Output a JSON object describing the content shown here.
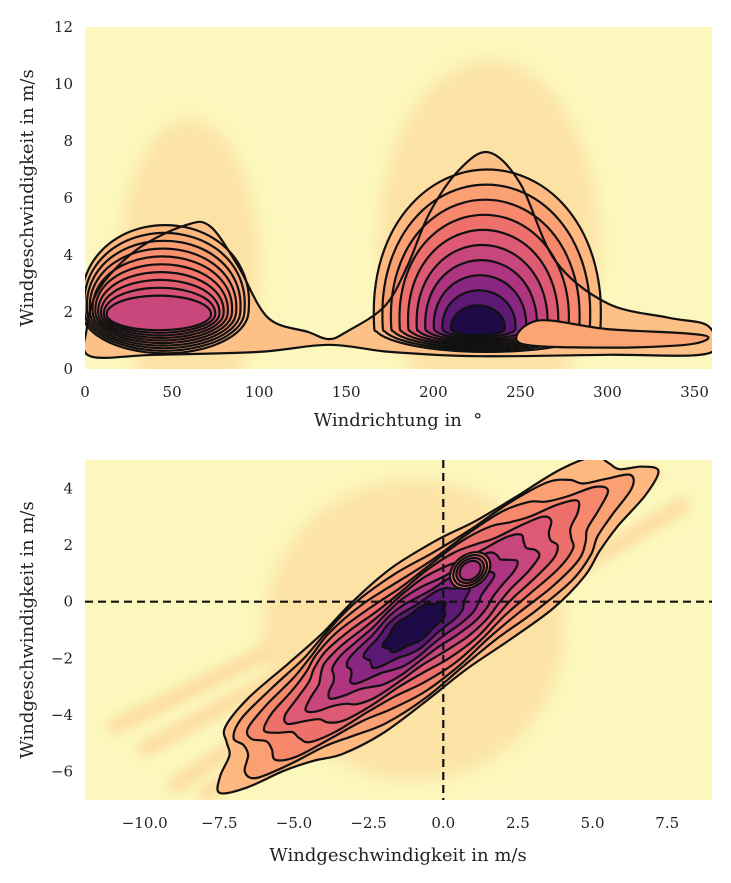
{
  "chart_data": [
    {
      "type": "kde-contour",
      "xlabel": "Windrichtung in  °",
      "ylabel": "Windgeschwindigkeit in m/s",
      "xlim": [
        0,
        360
      ],
      "ylim": [
        0,
        12
      ],
      "xticks": [
        0,
        50,
        100,
        150,
        200,
        250,
        300,
        350
      ],
      "yticks": [
        0,
        2,
        4,
        6,
        8,
        10,
        12
      ],
      "xtick_labels": [
        "0",
        "50",
        "100",
        "150",
        "200",
        "250",
        "300",
        "350"
      ],
      "ytick_labels": [
        "0",
        "2",
        "4",
        "6",
        "8",
        "10",
        "12"
      ],
      "grid": false,
      "colormap": "magma",
      "background_color": "#fcf8bd",
      "density_peaks": [
        {
          "x": 42,
          "y": 1.9,
          "relative_density": 0.55
        },
        {
          "x": 225,
          "y": 1.4,
          "relative_density": 1.0
        }
      ],
      "contour_levels": 10
    },
    {
      "type": "kde-contour",
      "xlabel": "Windgeschwindigkeit in m/s",
      "ylabel": "Windgeschwindigkeit in m/s",
      "xlim": [
        -12,
        9
      ],
      "ylim": [
        -7,
        5
      ],
      "xticks": [
        -10,
        -7.5,
        -5,
        -2.5,
        0,
        2.5,
        5,
        7.5
      ],
      "yticks": [
        -6,
        -4,
        -2,
        0,
        2,
        4
      ],
      "xtick_labels": [
        "−10.0",
        "−7.5",
        "−5.0",
        "−2.5",
        "0.0",
        "2.5",
        "5.0",
        "7.5"
      ],
      "ytick_labels": [
        "−6",
        "−4",
        "−2",
        "0",
        "2",
        "4"
      ],
      "grid": false,
      "colormap": "magma",
      "background_color": "#fcf8bd",
      "reference_lines": [
        {
          "orientation": "vertical",
          "value": 0,
          "style": "dashed"
        },
        {
          "orientation": "horizontal",
          "value": 0,
          "style": "dashed"
        }
      ],
      "density_peaks": [
        {
          "x": -1.0,
          "y": -0.9,
          "relative_density": 1.0
        },
        {
          "x": 0.9,
          "y": 1.1,
          "relative_density": 0.35
        }
      ],
      "contour_levels": 10
    }
  ]
}
